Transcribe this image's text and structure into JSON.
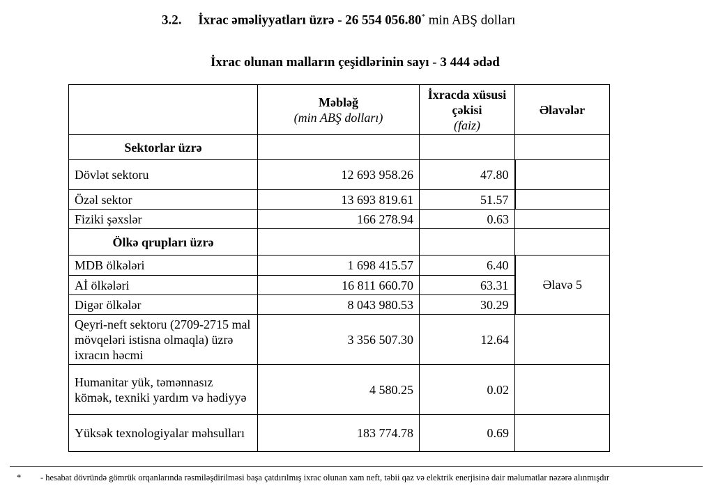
{
  "heading": {
    "number": "3.2.",
    "text": "İxrac əməliyyatları üzrə - 26 554 056.80",
    "marker": "*",
    "unit": "min ABŞ dolları"
  },
  "subheading": "İxrac olunan malların çeşidlərinin sayı  -  3 444 ədəd",
  "table": {
    "headers": {
      "amount": "Məbləğ",
      "amount_unit": "(min ABŞ dolları)",
      "share": "İxracda xüsusi çəkisi",
      "share_unit": "(faiz)",
      "notes": "Əlavələr"
    },
    "sections": {
      "sectors": "Sektorlar üzrə",
      "countries": "Ölkə qrupları üzrə"
    },
    "rows": [
      {
        "label": "Dövlət sektoru",
        "amount": "12 693 958.26",
        "share": "47.80"
      },
      {
        "label": "Özəl sektor",
        "amount": "13 693 819.61",
        "share": "51.57"
      },
      {
        "label": "Fiziki şəxslər",
        "amount": "166 278.94",
        "share": "0.63"
      },
      {
        "label": "MDB ölkələri",
        "amount": "1 698 415.57",
        "share": "6.40"
      },
      {
        "label": "Aİ ölkələri",
        "amount": "16 811 660.70",
        "share": "63.31"
      },
      {
        "label": "Digər ölkələr",
        "amount": "8 043 980.53",
        "share": "30.29"
      },
      {
        "label": "Qeyri-neft sektoru (2709-2715 mal mövqeləri istisna olmaqla) üzrə ixracın həcmi",
        "amount": "3 356 507.30",
        "share": "12.64"
      },
      {
        "label": "Humanitar yük, təmənnasız kömək, texniki yardım və hədiyyə",
        "amount": "4 580.25",
        "share": "0.02"
      },
      {
        "label": "Yüksək texnologiyalar məhsulları",
        "amount": "183 774.78",
        "share": "0.69"
      }
    ],
    "appendix_note": "Əlavə 5"
  },
  "footnote": {
    "marker": "*",
    "text": "- hesabat dövründə gömrük orqanlarında rəsmiləşdirilməsi başa çatdırılmış ixrac olunan xam neft, təbii qaz və elektrik enerjisinə dair məlumatlar nəzərə alınmışdır"
  }
}
